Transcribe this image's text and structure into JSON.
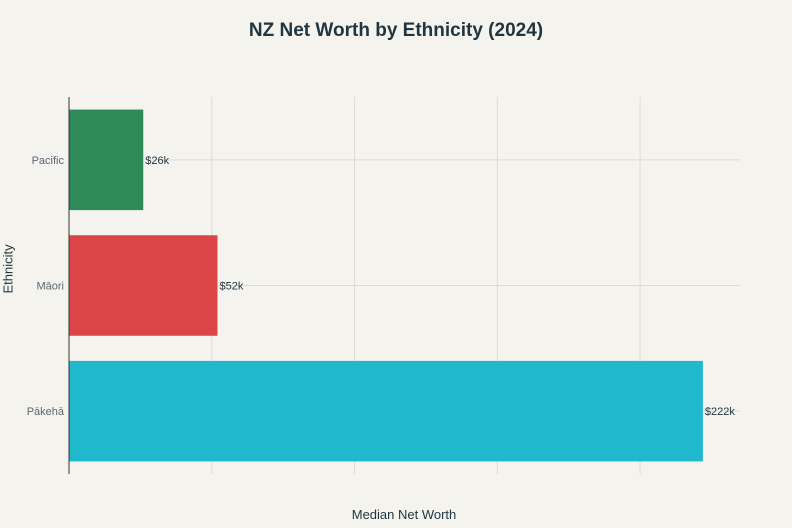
{
  "chart_data": {
    "type": "bar",
    "orientation": "horizontal",
    "title": "NZ Net Worth by Ethnicity (2024)",
    "xlabel": "Median Net Worth",
    "ylabel": "Ethnicity",
    "categories": [
      "Pacific",
      "Māori",
      "Pākehā"
    ],
    "values": [
      26,
      52,
      222
    ],
    "data_labels": [
      "$26k",
      "$52k",
      "$222k"
    ],
    "colors": [
      "#2e8b57",
      "#db4545",
      "#1fb8cd"
    ],
    "xlim": [
      0,
      235
    ],
    "grid": true,
    "legend": "none"
  }
}
